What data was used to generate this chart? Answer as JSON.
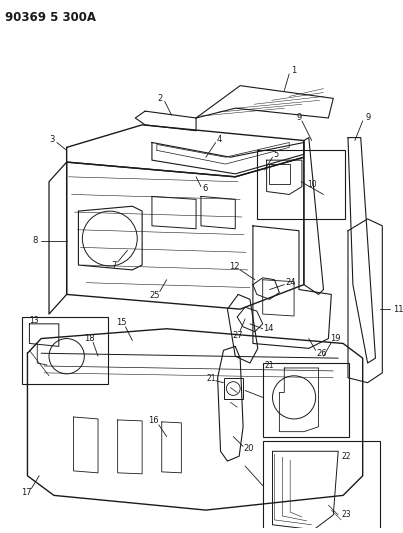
{
  "title": "90369 5 300A",
  "bg_color": "#ffffff",
  "line_color": "#1a1a1a",
  "fig_width": 4.03,
  "fig_height": 5.33,
  "dpi": 100
}
